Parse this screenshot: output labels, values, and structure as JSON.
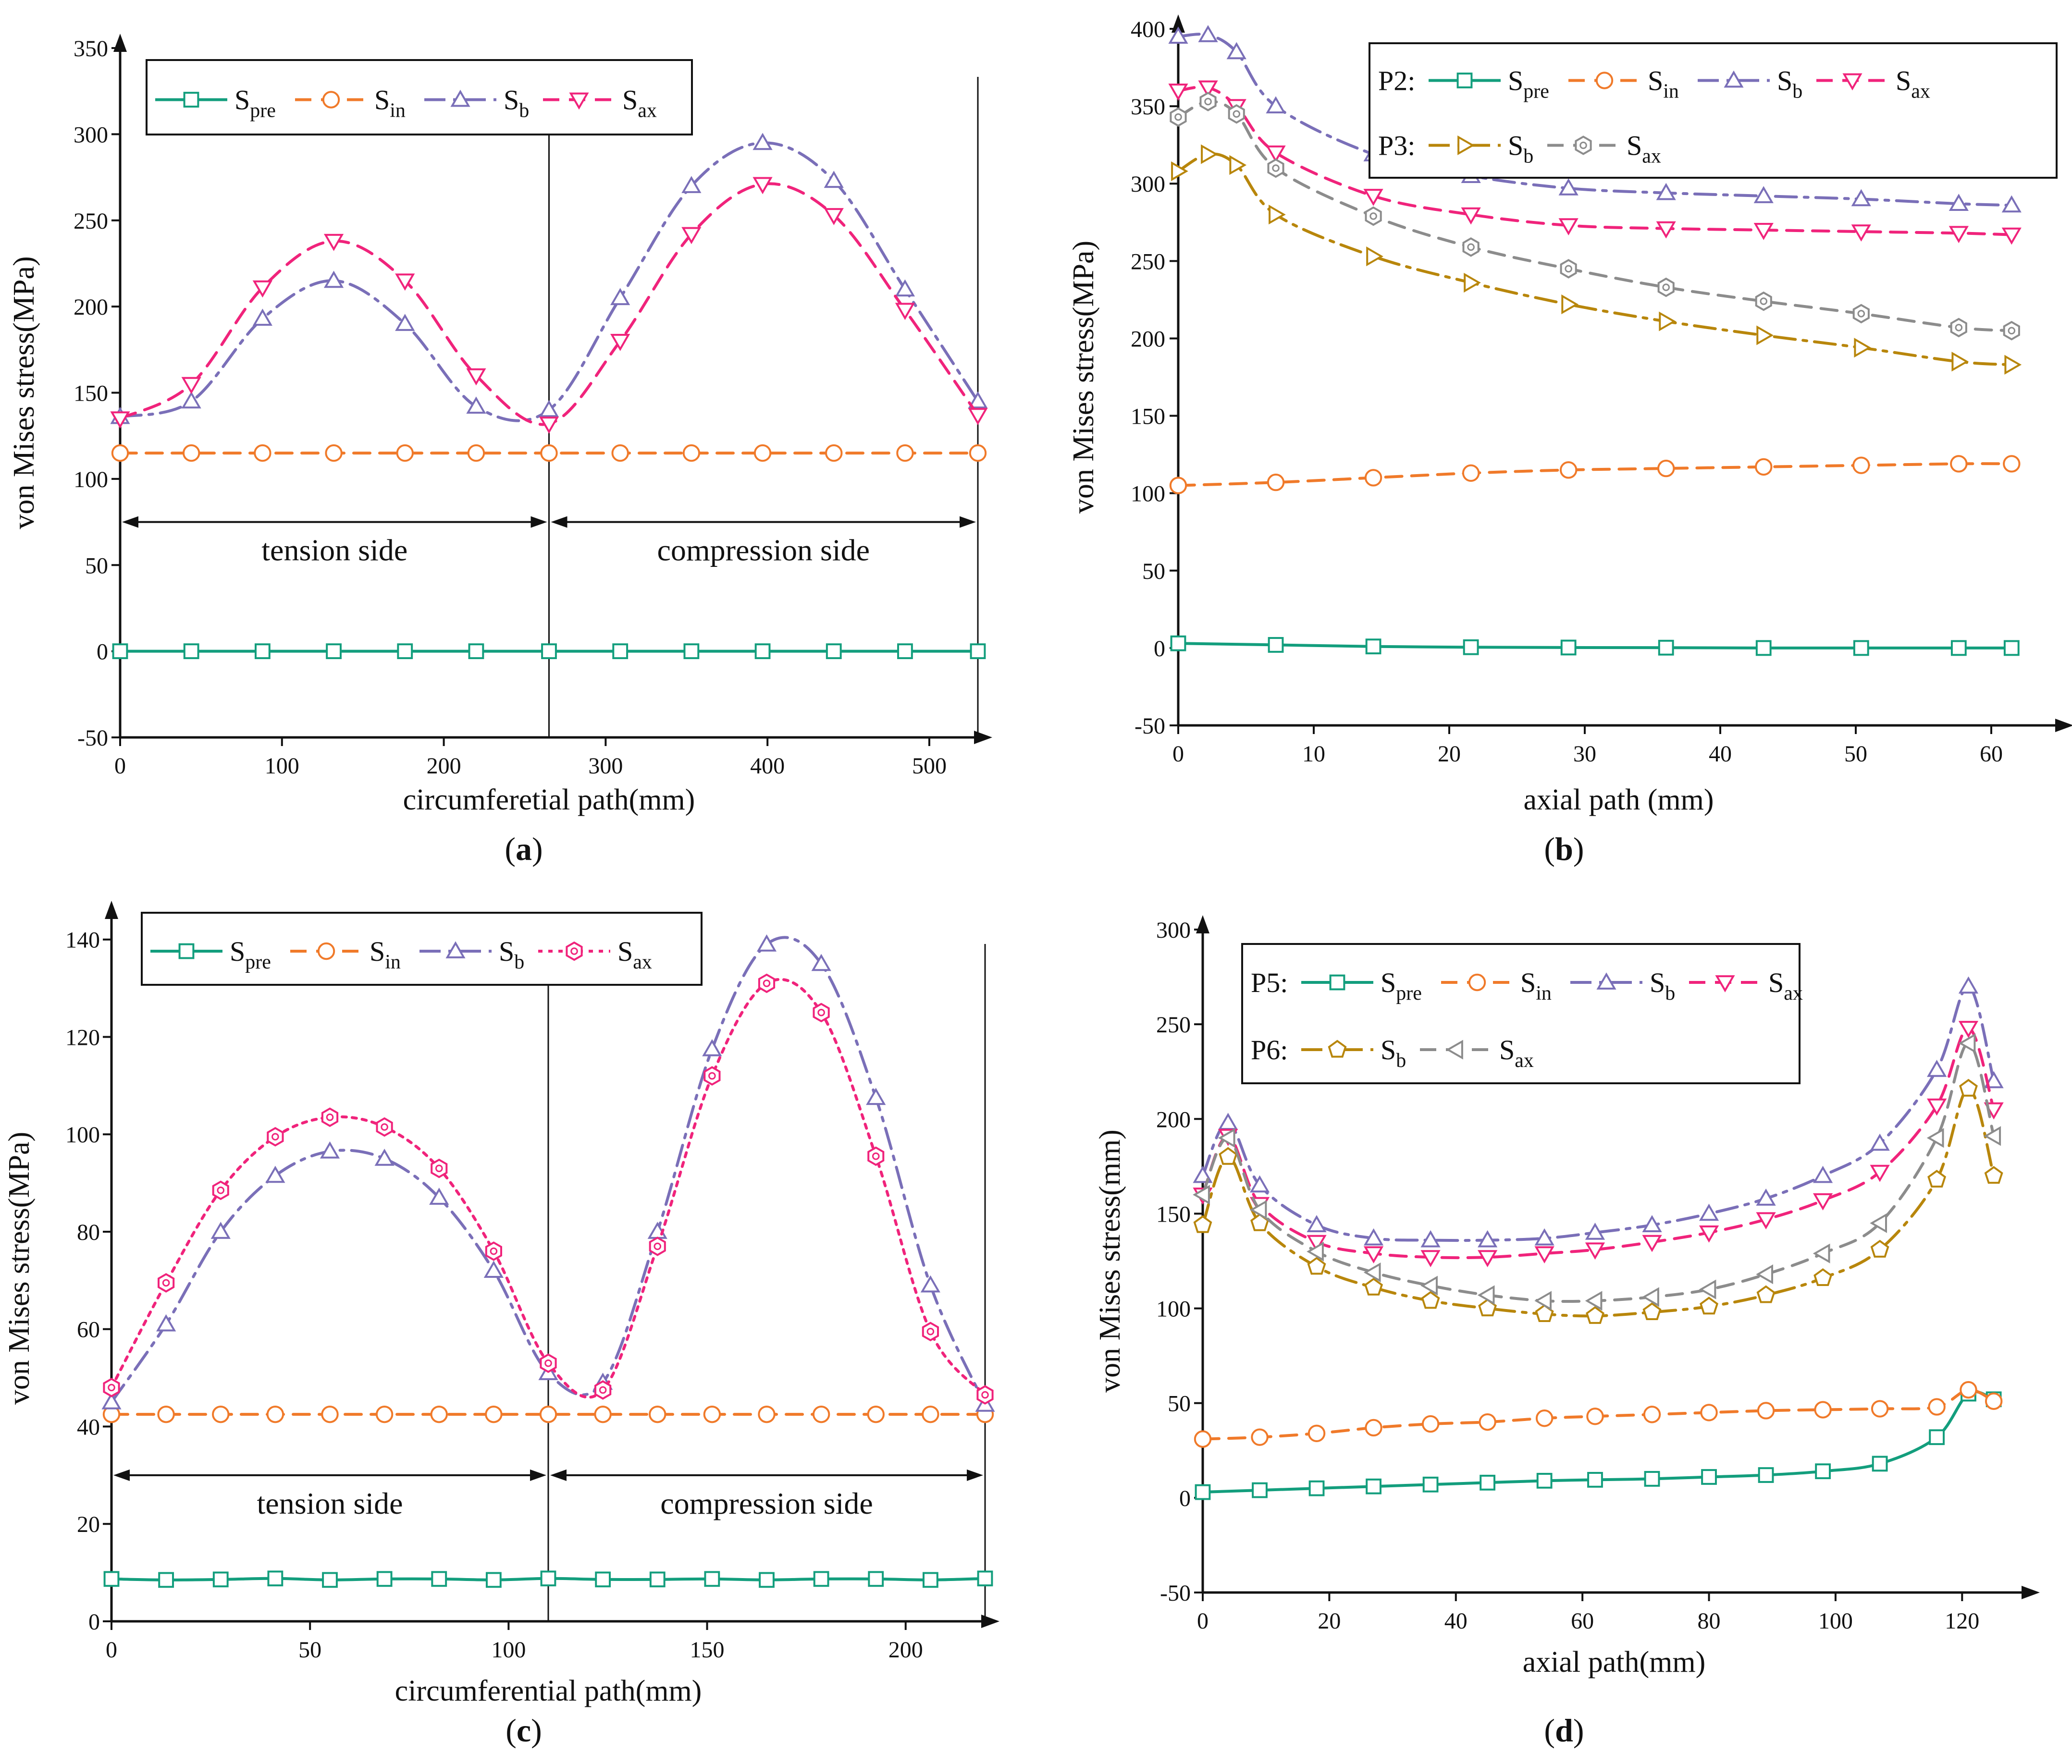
{
  "colors": {
    "pre": "#139E7D",
    "in": "#F07A2A",
    "b": "#7A6FB8",
    "ax": "#F0237B",
    "b_p3": "#B8860B",
    "ax_p3": "#8C8C8C"
  },
  "chart_data": [
    {
      "id": "a",
      "type": "line",
      "label": "(a)",
      "label_letter": "a",
      "xlabel": "circumferetial path(mm)",
      "ylabel": "von Mises stress(MPa)",
      "xlim": [
        0,
        530
      ],
      "ylim": [
        -50,
        350
      ],
      "xticks": [
        0,
        100,
        200,
        300,
        400,
        500
      ],
      "yticks": [
        -50,
        0,
        50,
        100,
        150,
        200,
        250,
        300,
        350
      ],
      "dividers": [
        265,
        530
      ],
      "regions": [
        {
          "text": "tension side",
          "from": 0,
          "to": 265,
          "y": 75
        },
        {
          "text": "compression side",
          "from": 265,
          "to": 530,
          "y": 75
        }
      ],
      "legend": {
        "rows": [
          [
            {
              "series": "Spre",
              "base": "S",
              "sub": "pre"
            },
            {
              "series": "Sin",
              "base": "S",
              "sub": "in"
            },
            {
              "series": "Sb",
              "base": "S",
              "sub": "b"
            },
            {
              "series": "Sax",
              "base": "S",
              "sub": "ax"
            }
          ]
        ]
      },
      "series": [
        {
          "name": "Spre",
          "color": "pre",
          "dash": "solid",
          "marker": "square",
          "x": [
            0,
            44,
            88,
            132,
            176,
            220,
            265,
            309,
            353,
            397,
            441,
            485,
            530
          ],
          "y": [
            0,
            0,
            0,
            0,
            0,
            0,
            0,
            0,
            0,
            0,
            0,
            0,
            0
          ]
        },
        {
          "name": "Sin",
          "color": "in",
          "dash": "dash",
          "marker": "circle",
          "x": [
            0,
            44,
            88,
            132,
            176,
            220,
            265,
            309,
            353,
            397,
            441,
            485,
            530
          ],
          "y": [
            115,
            115,
            115,
            115,
            115,
            115,
            115,
            115,
            115,
            115,
            115,
            115,
            115
          ]
        },
        {
          "name": "Sb",
          "color": "b",
          "dash": "dashdot",
          "marker": "triangle",
          "x": [
            0,
            44,
            88,
            132,
            176,
            220,
            265,
            309,
            353,
            397,
            441,
            485,
            530
          ],
          "y": [
            136,
            145,
            193,
            215,
            190,
            142,
            140,
            205,
            270,
            295,
            273,
            210,
            145
          ]
        },
        {
          "name": "Sax",
          "color": "ax",
          "dash": "dash",
          "marker": "triangle-down",
          "x": [
            0,
            44,
            88,
            132,
            176,
            220,
            265,
            309,
            353,
            397,
            441,
            485,
            530
          ],
          "y": [
            135,
            155,
            211,
            238,
            215,
            160,
            132,
            180,
            242,
            271,
            253,
            198,
            137
          ]
        }
      ]
    },
    {
      "id": "b",
      "type": "line",
      "label": "(b)",
      "label_letter": "b",
      "xlabel": "axial path (mm)",
      "ylabel": "von Mises stress(MPa)",
      "xlim": [
        0,
        65
      ],
      "ylim": [
        -50,
        400
      ],
      "xticks": [
        0,
        10,
        20,
        30,
        40,
        50,
        60
      ],
      "yticks": [
        -50,
        0,
        50,
        100,
        150,
        200,
        250,
        300,
        350,
        400
      ],
      "dividers": [],
      "regions": [],
      "legend": {
        "rows": [
          [
            {
              "prefix": "P2:",
              "series": "Spre",
              "base": "S",
              "sub": "pre"
            },
            {
              "series": "Sin",
              "base": "S",
              "sub": "in"
            },
            {
              "series": "Sb",
              "base": "S",
              "sub": "b"
            },
            {
              "series": "Sax",
              "base": "S",
              "sub": "ax"
            }
          ],
          [
            {
              "prefix": "P3:",
              "series": "Sb_P3",
              "base": "S",
              "sub": "b"
            },
            {
              "series": "Sax_P3",
              "base": "S",
              "sub": "ax"
            }
          ]
        ]
      },
      "series": [
        {
          "name": "Spre",
          "color": "pre",
          "dash": "solid",
          "marker": "square",
          "x": [
            0,
            7.2,
            14.4,
            21.6,
            28.8,
            36,
            43.2,
            50.4,
            57.6,
            61.5
          ],
          "y": [
            3,
            2,
            1,
            0.5,
            0.3,
            0.2,
            0,
            0,
            0,
            0
          ]
        },
        {
          "name": "Sin",
          "color": "in",
          "dash": "dash",
          "marker": "circle",
          "x": [
            0,
            7.2,
            14.4,
            21.6,
            28.8,
            36,
            43.2,
            50.4,
            57.6,
            61.5
          ],
          "y": [
            105,
            107,
            110,
            113,
            115,
            116,
            117,
            118,
            119,
            119
          ]
        },
        {
          "name": "Sb",
          "color": "b",
          "dash": "dashdot",
          "marker": "triangle",
          "x": [
            0,
            2.2,
            4.3,
            7.2,
            14.4,
            21.6,
            28.8,
            36,
            43.2,
            50.4,
            57.6,
            61.5
          ],
          "y": [
            395,
            396,
            385,
            350,
            319,
            305,
            297,
            294,
            292,
            290,
            287,
            286
          ]
        },
        {
          "name": "Sax",
          "color": "ax",
          "dash": "dash",
          "marker": "triangle-down",
          "x": [
            0,
            2.2,
            4.3,
            7.2,
            14.4,
            21.6,
            28.8,
            36,
            43.2,
            50.4,
            57.6,
            61.5
          ],
          "y": [
            360,
            362,
            350,
            320,
            292,
            280,
            273,
            271,
            270,
            269,
            268,
            267
          ]
        },
        {
          "name": "Sb_P3",
          "color": "b_p3",
          "dash": "dashdot",
          "marker": "triangle-right",
          "x": [
            0,
            2.2,
            4.3,
            7.2,
            14.4,
            21.6,
            28.8,
            36,
            43.2,
            50.4,
            57.6,
            61.5
          ],
          "y": [
            308,
            319,
            312,
            280,
            253,
            236,
            222,
            211,
            202,
            194,
            185,
            183
          ]
        },
        {
          "name": "Sax_P3",
          "color": "ax_p3",
          "dash": "dash",
          "marker": "hexagon",
          "x": [
            0,
            2.2,
            4.3,
            7.2,
            14.4,
            21.6,
            28.8,
            36,
            43.2,
            50.4,
            57.6,
            61.5
          ],
          "y": [
            343,
            353,
            345,
            310,
            279,
            259,
            245,
            233,
            224,
            216,
            207,
            205
          ]
        }
      ]
    },
    {
      "id": "c",
      "type": "line",
      "label": "(c)",
      "label_letter": "c",
      "xlabel": "circumferential path(mm)",
      "ylabel": "von Mises stress(MPa)",
      "xlim": [
        0,
        220
      ],
      "ylim": [
        0,
        145
      ],
      "xticks": [
        0,
        50,
        100,
        150,
        200
      ],
      "yticks": [
        0,
        20,
        40,
        60,
        80,
        100,
        120,
        140
      ],
      "dividers": [
        110,
        220
      ],
      "regions": [
        {
          "text": "tension side",
          "from": 0,
          "to": 110,
          "y": 30
        },
        {
          "text": "compression side",
          "from": 110,
          "to": 220,
          "y": 30
        }
      ],
      "legend": {
        "rows": [
          [
            {
              "series": "Spre",
              "base": "S",
              "sub": "pre"
            },
            {
              "series": "Sin",
              "base": "S",
              "sub": "in"
            },
            {
              "series": "Sb",
              "base": "S",
              "sub": "b"
            },
            {
              "series": "Sax",
              "base": "S",
              "sub": "ax"
            }
          ]
        ]
      },
      "series": [
        {
          "name": "Spre",
          "color": "pre",
          "dash": "solid",
          "marker": "square",
          "x": [
            0,
            13.75,
            27.5,
            41.25,
            55,
            68.75,
            82.5,
            96.25,
            110,
            123.75,
            137.5,
            151.25,
            165,
            178.75,
            192.5,
            206.25,
            220
          ],
          "y": [
            8.7,
            8.5,
            8.6,
            8.8,
            8.5,
            8.7,
            8.7,
            8.5,
            8.8,
            8.6,
            8.6,
            8.7,
            8.5,
            8.7,
            8.7,
            8.5,
            8.8
          ]
        },
        {
          "name": "Sin",
          "color": "in",
          "dash": "dash",
          "marker": "circle",
          "x": [
            0,
            13.75,
            27.5,
            41.25,
            55,
            68.75,
            82.5,
            96.25,
            110,
            123.75,
            137.5,
            151.25,
            165,
            178.75,
            192.5,
            206.25,
            220
          ],
          "y": [
            42.5,
            42.5,
            42.5,
            42.5,
            42.5,
            42.5,
            42.5,
            42.5,
            42.5,
            42.5,
            42.5,
            42.5,
            42.5,
            42.5,
            42.5,
            42.5,
            42.5
          ]
        },
        {
          "name": "Sb",
          "color": "b",
          "dash": "dashdot",
          "marker": "triangle",
          "x": [
            0,
            13.75,
            27.5,
            41.25,
            55,
            68.75,
            82.5,
            96.25,
            110,
            123.75,
            137.5,
            151.25,
            165,
            178.75,
            192.5,
            206.25,
            220
          ],
          "y": [
            45,
            61,
            80,
            91.5,
            96.5,
            95,
            87,
            72,
            51,
            49,
            80,
            117.5,
            139,
            135,
            107.5,
            69,
            44.5
          ]
        },
        {
          "name": "Sax",
          "color": "ax",
          "dash": "dot",
          "marker": "hexagon",
          "x": [
            0,
            13.75,
            27.5,
            41.25,
            55,
            68.75,
            82.5,
            96.25,
            110,
            123.75,
            137.5,
            151.25,
            165,
            178.75,
            192.5,
            206.25,
            220
          ],
          "y": [
            48,
            69.5,
            88.5,
            99.5,
            103.5,
            101.5,
            93,
            76,
            53,
            47.5,
            77,
            112,
            131,
            125,
            95.5,
            59.5,
            46.5
          ]
        }
      ]
    },
    {
      "id": "d",
      "type": "line",
      "label": "(d)",
      "label_letter": "d",
      "xlabel": "axial path(mm)",
      "ylabel": "von Mises stress(mm)",
      "xlim": [
        0,
        130
      ],
      "ylim": [
        -50,
        300
      ],
      "xticks": [
        0,
        20,
        40,
        60,
        80,
        100,
        120
      ],
      "yticks": [
        -50,
        0,
        50,
        100,
        150,
        200,
        250,
        300
      ],
      "dividers": [],
      "regions": [],
      "legend": {
        "rows": [
          [
            {
              "prefix": "P5:",
              "series": "Spre",
              "base": "S",
              "sub": "pre"
            },
            {
              "series": "Sin",
              "base": "S",
              "sub": "in"
            },
            {
              "series": "Sb",
              "base": "S",
              "sub": "b"
            },
            {
              "series": "Sax",
              "base": "S",
              "sub": "ax"
            }
          ],
          [
            {
              "prefix": "P6:",
              "series": "Sb_P6",
              "base": "S",
              "sub": "b"
            },
            {
              "series": "Sax_P6",
              "base": "S",
              "sub": "ax"
            }
          ]
        ]
      },
      "series": [
        {
          "name": "Spre",
          "color": "pre",
          "dash": "solid",
          "marker": "square",
          "x": [
            0,
            9,
            18,
            27,
            36,
            45,
            54,
            62,
            71,
            80,
            89,
            98,
            107,
            116,
            121,
            125
          ],
          "y": [
            3,
            4,
            5,
            6,
            7,
            8,
            9,
            9.5,
            10,
            11,
            12,
            14,
            18,
            32,
            55,
            52
          ]
        },
        {
          "name": "Sin",
          "color": "in",
          "dash": "dash",
          "marker": "circle",
          "x": [
            0,
            9,
            18,
            27,
            36,
            45,
            54,
            62,
            71,
            80,
            89,
            98,
            107,
            116,
            121,
            125
          ],
          "y": [
            31,
            32,
            34,
            37,
            39,
            40,
            42,
            43,
            44,
            45,
            46,
            46.5,
            47,
            48,
            57,
            51
          ]
        },
        {
          "name": "Sb",
          "color": "b",
          "dash": "dashdot",
          "marker": "triangle",
          "x": [
            0,
            4,
            9,
            18,
            27,
            36,
            45,
            54,
            62,
            71,
            80,
            89,
            98,
            107,
            116,
            121,
            125
          ],
          "y": [
            170,
            198,
            165,
            144,
            137,
            136,
            136,
            137,
            140,
            144,
            150,
            158,
            170,
            187,
            226,
            270,
            220
          ]
        },
        {
          "name": "Sax",
          "color": "ax",
          "dash": "dash",
          "marker": "triangle-down",
          "x": [
            0,
            4,
            9,
            18,
            27,
            36,
            45,
            54,
            62,
            71,
            80,
            89,
            98,
            107,
            116,
            121,
            125
          ],
          "y": [
            160,
            191,
            155,
            135,
            129,
            127,
            127,
            129,
            131,
            135,
            140,
            147,
            157,
            172,
            207,
            248,
            205
          ]
        },
        {
          "name": "Sb_P6",
          "color": "b_p3",
          "dash": "dashdot",
          "marker": "pentagon",
          "x": [
            0,
            4,
            9,
            18,
            27,
            36,
            45,
            54,
            62,
            71,
            80,
            89,
            98,
            107,
            116,
            121,
            125
          ],
          "y": [
            144,
            180,
            145,
            122,
            111,
            104,
            100,
            97,
            96,
            98,
            101,
            107,
            116,
            131,
            168,
            216,
            170
          ]
        },
        {
          "name": "Sax_P6",
          "color": "ax_p3",
          "dash": "dash",
          "marker": "triangle-left",
          "x": [
            0,
            4,
            9,
            18,
            27,
            36,
            45,
            54,
            62,
            71,
            80,
            89,
            98,
            107,
            116,
            121,
            125
          ],
          "y": [
            160,
            190,
            152,
            130,
            119,
            112,
            107,
            104,
            104,
            106,
            110,
            118,
            129,
            145,
            190,
            240,
            191
          ]
        }
      ]
    }
  ]
}
